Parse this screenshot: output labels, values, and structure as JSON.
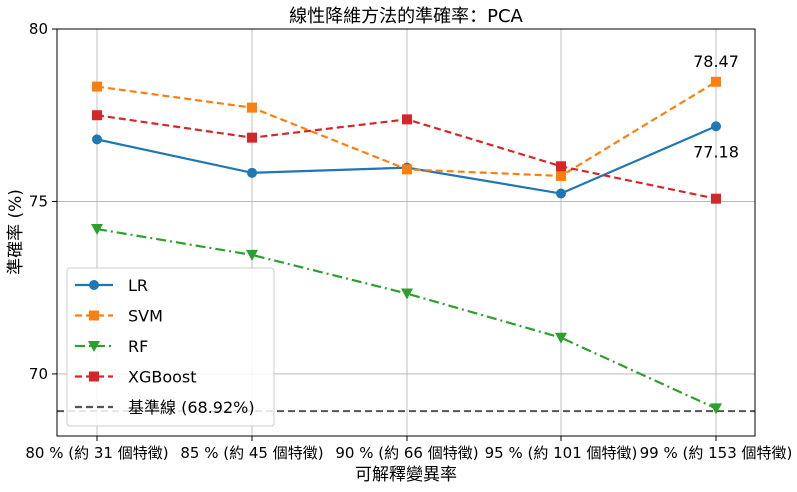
{
  "chart_data": {
    "type": "line",
    "title": "線性降維方法的準確率：PCA",
    "xlabel": "可解釋變異率",
    "ylabel": "準確率 (%)",
    "categories": [
      "80 % (約 31 個特徵)",
      "85 % (約 45 個特徵)",
      "90 % (約 66 個特徵)",
      "95 % (約 101 個特徵)",
      "99 % (約 153 個特徵)"
    ],
    "yticks": [
      "70",
      "75",
      "80"
    ],
    "ylim": [
      68.2,
      80
    ],
    "grid": true,
    "legend_position": "lower-left",
    "series": [
      {
        "name": "LR",
        "values": [
          76.8,
          75.83,
          75.98,
          75.23,
          77.18
        ],
        "color": "#1f77b4",
        "linestyle": "solid",
        "marker": "circle"
      },
      {
        "name": "SVM",
        "values": [
          78.33,
          77.72,
          75.93,
          75.74,
          78.47
        ],
        "color": "#ff7f0e",
        "linestyle": "dashed",
        "marker": "square"
      },
      {
        "name": "RF",
        "values": [
          74.2,
          73.45,
          72.33,
          71.05,
          69.0
        ],
        "color": "#2ca02c",
        "linestyle": "dashdot",
        "marker": "triangle-down"
      },
      {
        "name": "XGBoost",
        "values": [
          77.5,
          76.85,
          77.38,
          76.02,
          75.08
        ],
        "color": "#d62728",
        "linestyle": "dashed",
        "marker": "square"
      }
    ],
    "baseline": {
      "name": "基準線 (68.92%)",
      "value": 68.92,
      "color": "#555555",
      "linestyle": "dashed"
    },
    "annotations": [
      {
        "text": "78.47",
        "series": "SVM",
        "category_index": 4,
        "placement": "above"
      },
      {
        "text": "77.18",
        "series": "LR",
        "category_index": 4,
        "placement": "below"
      }
    ]
  }
}
